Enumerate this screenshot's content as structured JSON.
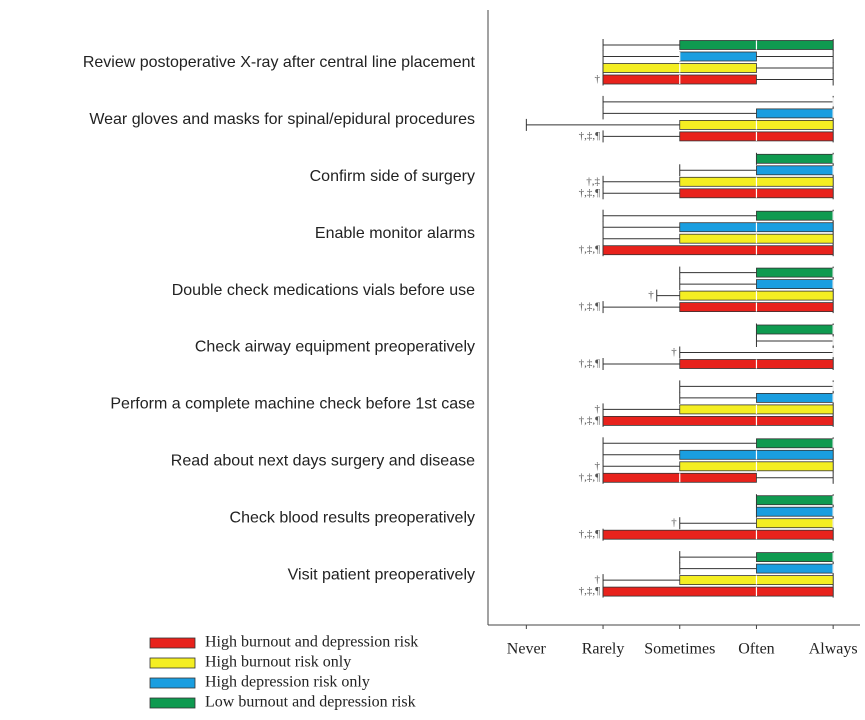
{
  "chart_data": {
    "type": "box",
    "categories": [
      "Review postoperative X-ray after central line placement",
      "Wear gloves and masks for spinal/epidural procedures",
      "Confirm side of surgery",
      "Enable monitor alarms",
      "Double check medications vials before use",
      "Check airway equipment preoperatively",
      "Perform a complete machine check before 1st case",
      "Read about next days surgery and disease",
      "Check blood results preoperatively",
      "Visit patient preoperatively"
    ],
    "xlim": [
      0.5,
      5.35
    ],
    "xticks": [
      {
        "value": 1,
        "label": "Never"
      },
      {
        "value": 2,
        "label": "Rarely"
      },
      {
        "value": 3,
        "label": "Sometimes"
      },
      {
        "value": 4,
        "label": "Often"
      },
      {
        "value": 5,
        "label": "Always"
      }
    ],
    "series": [
      {
        "name": "High burnout and depression risk",
        "color": "#e8221c",
        "min": [
          2,
          2,
          2,
          2,
          2,
          2,
          2,
          2,
          2,
          2
        ],
        "q1": [
          2,
          3,
          3,
          2,
          3,
          3,
          2,
          2,
          2,
          2
        ],
        "median": [
          3,
          4,
          4,
          4,
          4,
          4,
          4,
          3,
          4,
          4
        ],
        "q3": [
          4,
          5,
          5,
          5,
          5,
          5,
          5,
          4,
          5,
          5
        ],
        "max": [
          5,
          5,
          5,
          5,
          5,
          5,
          5,
          5,
          5,
          5
        ],
        "labels": [
          "†",
          "†,‡,¶",
          "†,‡,¶",
          "†,‡,¶",
          "†,‡,¶",
          "†,‡,¶",
          "†,‡,¶",
          "†,‡,¶",
          "†,‡,¶",
          "†,‡,¶"
        ]
      },
      {
        "name": "High burnout risk only",
        "color": "#f4ee22",
        "min": [
          2,
          1,
          2,
          2,
          2.7,
          3,
          2,
          2,
          3,
          2
        ],
        "q1": [
          2,
          3,
          3,
          3,
          3,
          5,
          3,
          3,
          4,
          3
        ],
        "median": [
          3,
          4,
          4,
          4,
          4,
          5,
          4,
          4,
          5,
          4
        ],
        "q3": [
          4,
          5,
          5,
          5,
          5,
          5,
          5,
          5,
          5,
          5
        ],
        "max": [
          5,
          5,
          5,
          5,
          5,
          5,
          5,
          5,
          5,
          5
        ],
        "labels": [
          null,
          null,
          "†,‡",
          null,
          "†",
          "†",
          "†",
          "†",
          "†",
          "†"
        ]
      },
      {
        "name": "High depression risk only",
        "color": "#1a9ee0",
        "min": [
          2,
          2,
          3,
          2,
          3,
          4,
          3,
          2,
          4,
          3
        ],
        "q1": [
          3,
          4,
          4,
          3,
          4,
          5,
          4,
          3,
          4,
          4
        ],
        "median": [
          3,
          5,
          5,
          4,
          5,
          5,
          5,
          4,
          5,
          5
        ],
        "q3": [
          4,
          5,
          5,
          5,
          5,
          5,
          5,
          5,
          5,
          5
        ],
        "max": [
          5,
          5,
          5,
          5,
          5,
          5,
          5,
          5,
          5,
          5
        ],
        "labels": [
          null,
          null,
          null,
          null,
          null,
          null,
          null,
          null,
          null,
          null
        ]
      },
      {
        "name": "Low burnout and depression risk",
        "color": "#0f9a50",
        "min": [
          2,
          2,
          4,
          2,
          3,
          4,
          3,
          2,
          4,
          3
        ],
        "q1": [
          3,
          5,
          4,
          4,
          4,
          4,
          5,
          4,
          4,
          4
        ],
        "median": [
          4,
          5,
          5,
          5,
          5,
          5,
          5,
          5,
          5,
          5
        ],
        "q3": [
          5,
          5,
          5,
          5,
          5,
          5,
          5,
          5,
          5,
          5
        ],
        "max": [
          5,
          5,
          5,
          5,
          5,
          5,
          5,
          5,
          5,
          5
        ],
        "labels": [
          null,
          null,
          null,
          null,
          null,
          null,
          null,
          null,
          null,
          null
        ]
      }
    ]
  }
}
